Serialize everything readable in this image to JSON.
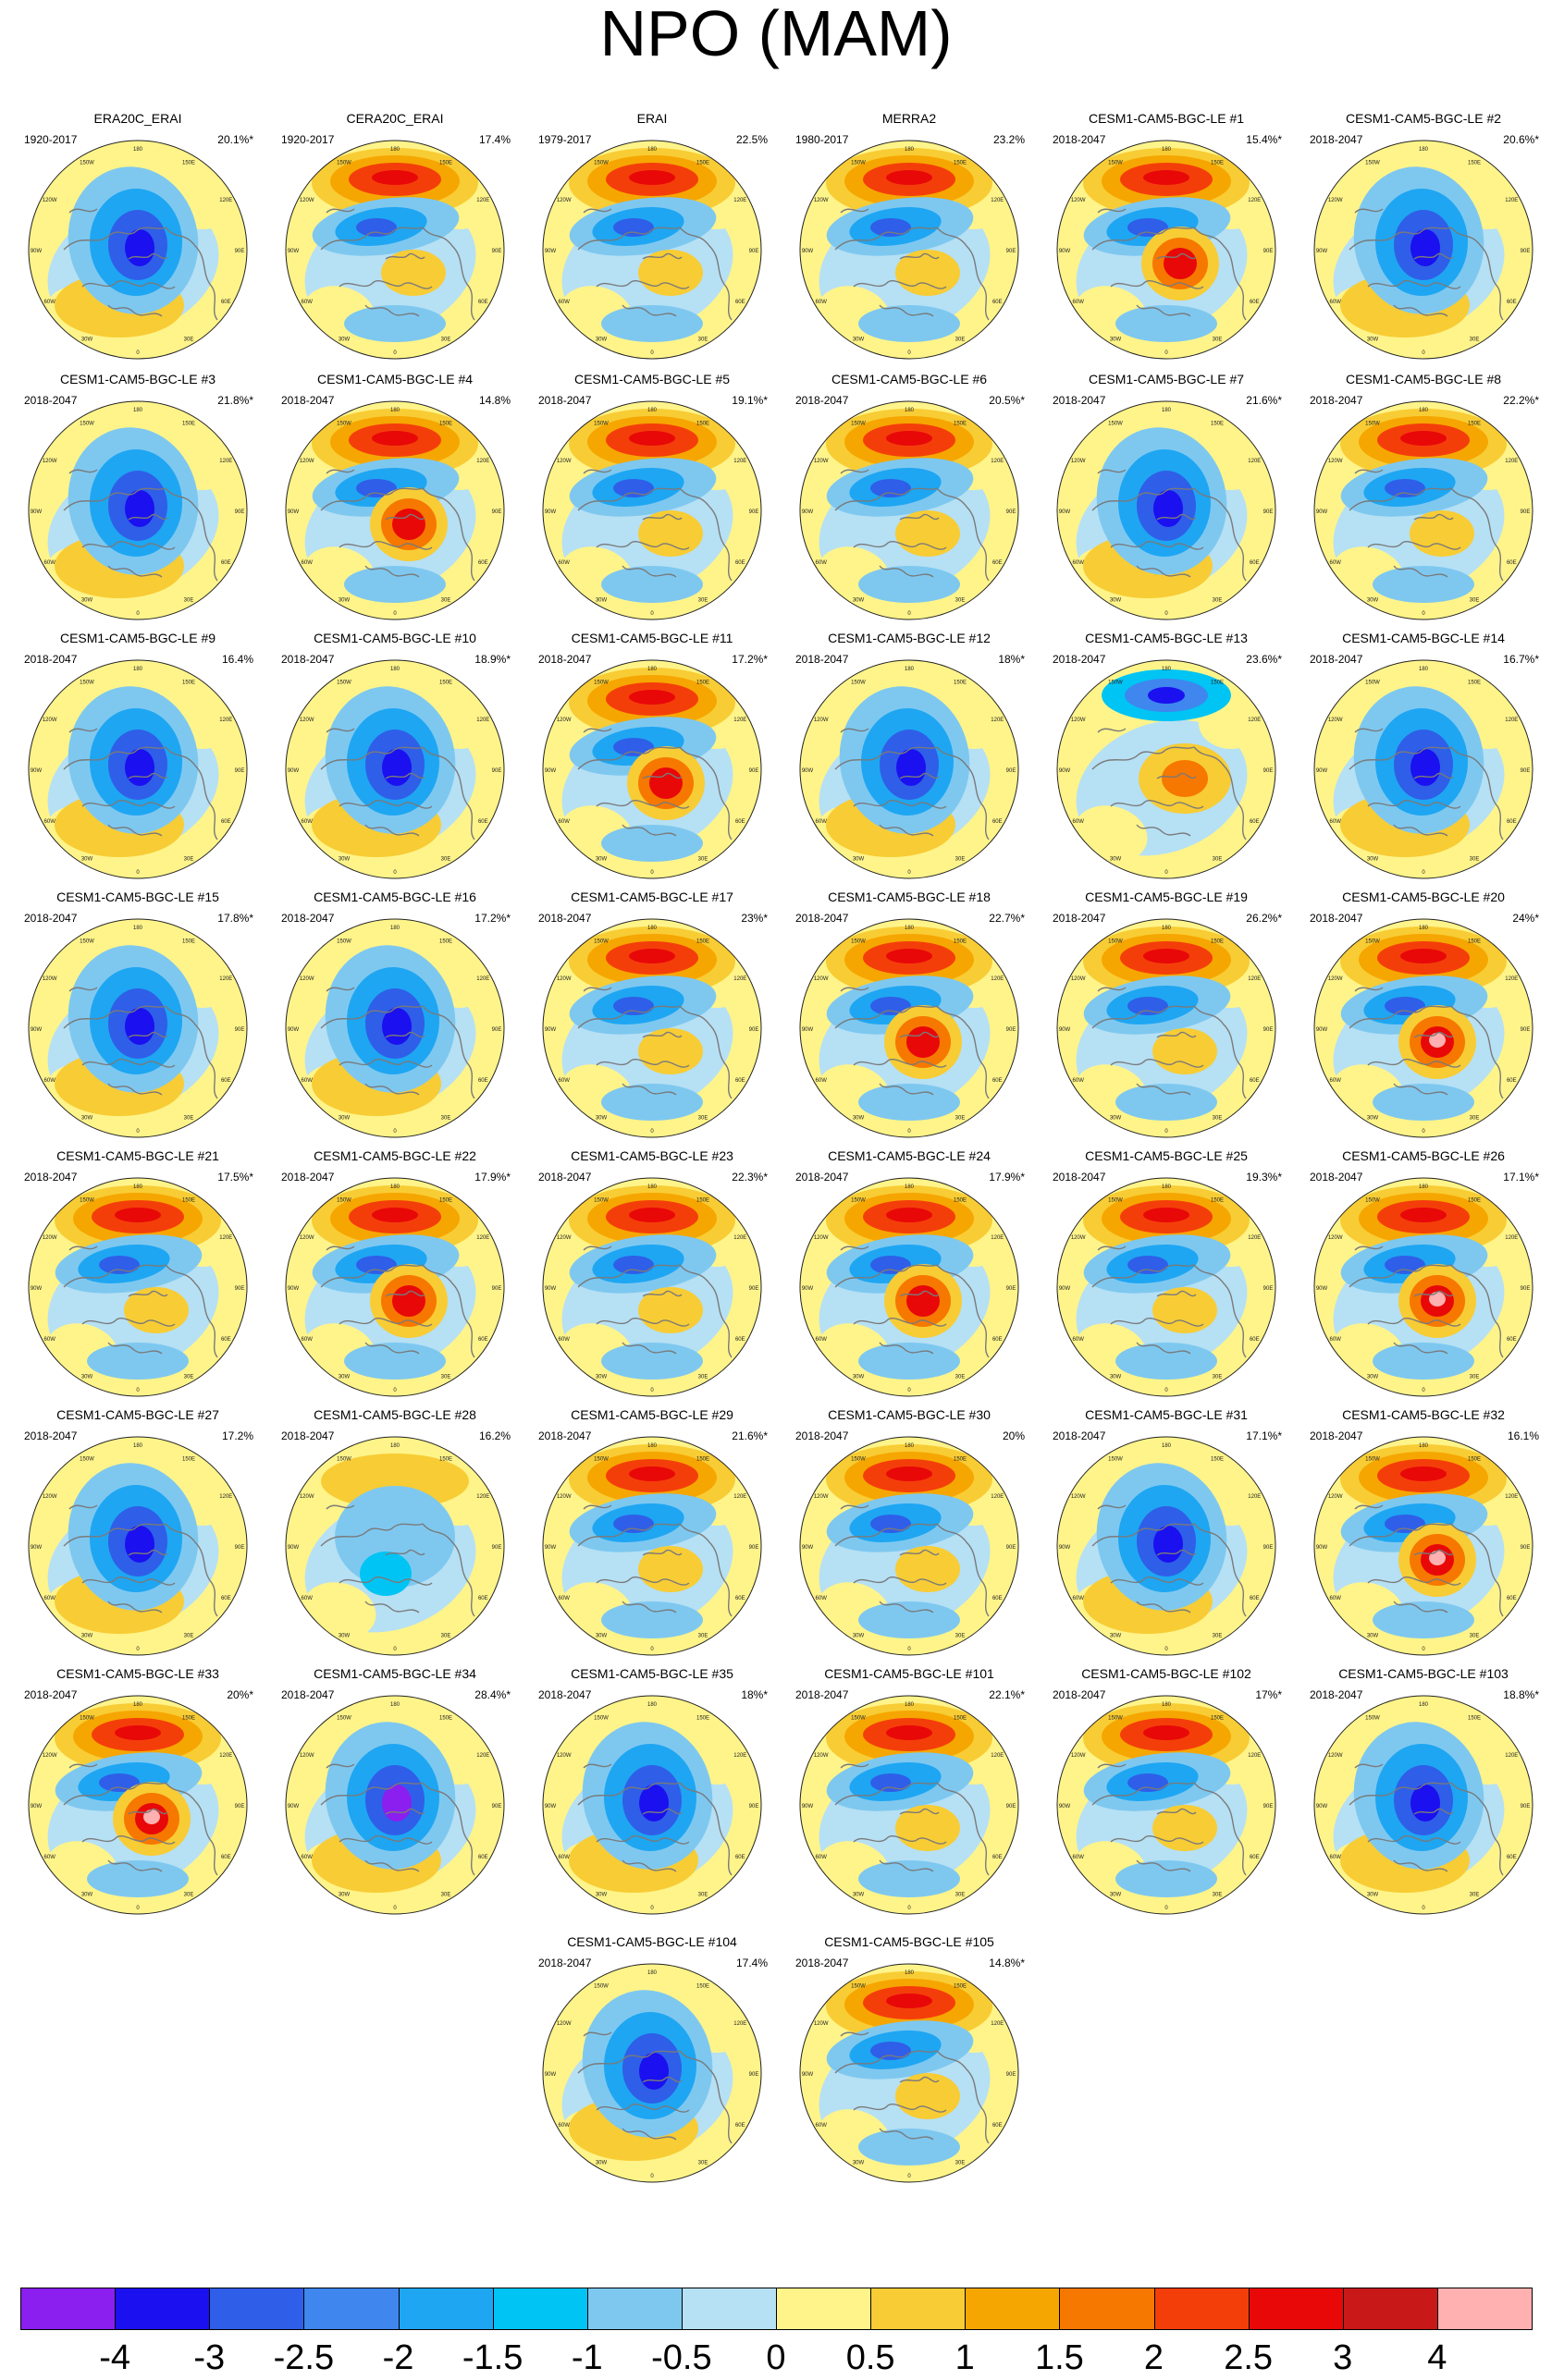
{
  "title": "NPO (MAM)",
  "chart_data": {
    "type": "small-multiples polar stereographic maps",
    "title": "NPO (MAM)",
    "map_longitude_labels": [
      "180",
      "150E",
      "120E",
      "90E",
      "60E",
      "30E",
      "0",
      "30W",
      "60W",
      "90W",
      "120W",
      "150W"
    ],
    "panels": [
      {
        "name": "ERA20C_ERAI",
        "period": "1920-2017",
        "variance": "20.1%*",
        "pattern": "low"
      },
      {
        "name": "CERA20C_ERAI",
        "period": "1920-2017",
        "variance": "17.4%",
        "pattern": "dipole"
      },
      {
        "name": "ERAI",
        "period": "1979-2017",
        "variance": "22.5%",
        "pattern": "dipole"
      },
      {
        "name": "MERRA2",
        "period": "1980-2017",
        "variance": "23.2%",
        "pattern": "dipole"
      },
      {
        "name": "CESM1-CAM5-BGC-LE #1",
        "period": "2018-2047",
        "variance": "15.4%*",
        "pattern": "dipole-high"
      },
      {
        "name": "CESM1-CAM5-BGC-LE #2",
        "period": "2018-2047",
        "variance": "20.6%*",
        "pattern": "low"
      },
      {
        "name": "CESM1-CAM5-BGC-LE #3",
        "period": "2018-2047",
        "variance": "21.8%*",
        "pattern": "low"
      },
      {
        "name": "CESM1-CAM5-BGC-LE #4",
        "period": "2018-2047",
        "variance": "14.8%",
        "pattern": "dipole-high"
      },
      {
        "name": "CESM1-CAM5-BGC-LE #5",
        "period": "2018-2047",
        "variance": "19.1%*",
        "pattern": "dipole"
      },
      {
        "name": "CESM1-CAM5-BGC-LE #6",
        "period": "2018-2047",
        "variance": "20.5%*",
        "pattern": "dipole"
      },
      {
        "name": "CESM1-CAM5-BGC-LE #7",
        "period": "2018-2047",
        "variance": "21.6%*",
        "pattern": "low"
      },
      {
        "name": "CESM1-CAM5-BGC-LE #8",
        "period": "2018-2047",
        "variance": "22.2%*",
        "pattern": "dipole"
      },
      {
        "name": "CESM1-CAM5-BGC-LE #9",
        "period": "2018-2047",
        "variance": "16.4%",
        "pattern": "low"
      },
      {
        "name": "CESM1-CAM5-BGC-LE #10",
        "period": "2018-2047",
        "variance": "18.9%*",
        "pattern": "low"
      },
      {
        "name": "CESM1-CAM5-BGC-LE #11",
        "period": "2018-2047",
        "variance": "17.2%*",
        "pattern": "dipole-high"
      },
      {
        "name": "CESM1-CAM5-BGC-LE #12",
        "period": "2018-2047",
        "variance": "18%*",
        "pattern": "low"
      },
      {
        "name": "CESM1-CAM5-BGC-LE #13",
        "period": "2018-2047",
        "variance": "23.6%*",
        "pattern": "inverse"
      },
      {
        "name": "CESM1-CAM5-BGC-LE #14",
        "period": "2018-2047",
        "variance": "16.7%*",
        "pattern": "low"
      },
      {
        "name": "CESM1-CAM5-BGC-LE #15",
        "period": "2018-2047",
        "variance": "17.8%*",
        "pattern": "low"
      },
      {
        "name": "CESM1-CAM5-BGC-LE #16",
        "period": "2018-2047",
        "variance": "17.2%*",
        "pattern": "low"
      },
      {
        "name": "CESM1-CAM5-BGC-LE #17",
        "period": "2018-2047",
        "variance": "23%*",
        "pattern": "dipole"
      },
      {
        "name": "CESM1-CAM5-BGC-LE #18",
        "period": "2018-2047",
        "variance": "22.7%*",
        "pattern": "dipole-high"
      },
      {
        "name": "CESM1-CAM5-BGC-LE #19",
        "period": "2018-2047",
        "variance": "26.2%*",
        "pattern": "dipole"
      },
      {
        "name": "CESM1-CAM5-BGC-LE #20",
        "period": "2018-2047",
        "variance": "24%*",
        "pattern": "dipole-strong"
      },
      {
        "name": "CESM1-CAM5-BGC-LE #21",
        "period": "2018-2047",
        "variance": "17.5%*",
        "pattern": "dipole"
      },
      {
        "name": "CESM1-CAM5-BGC-LE #22",
        "period": "2018-2047",
        "variance": "17.9%*",
        "pattern": "dipole-high"
      },
      {
        "name": "CESM1-CAM5-BGC-LE #23",
        "period": "2018-2047",
        "variance": "22.3%*",
        "pattern": "dipole"
      },
      {
        "name": "CESM1-CAM5-BGC-LE #24",
        "period": "2018-2047",
        "variance": "17.9%*",
        "pattern": "dipole-high"
      },
      {
        "name": "CESM1-CAM5-BGC-LE #25",
        "period": "2018-2047",
        "variance": "19.3%*",
        "pattern": "dipole"
      },
      {
        "name": "CESM1-CAM5-BGC-LE #26",
        "period": "2018-2047",
        "variance": "17.1%*",
        "pattern": "dipole-strong"
      },
      {
        "name": "CESM1-CAM5-BGC-LE #27",
        "period": "2018-2047",
        "variance": "17.2%",
        "pattern": "low"
      },
      {
        "name": "CESM1-CAM5-BGC-LE #28",
        "period": "2018-2047",
        "variance": "16.2%",
        "pattern": "weak"
      },
      {
        "name": "CESM1-CAM5-BGC-LE #29",
        "period": "2018-2047",
        "variance": "21.6%*",
        "pattern": "dipole"
      },
      {
        "name": "CESM1-CAM5-BGC-LE #30",
        "period": "2018-2047",
        "variance": "20%",
        "pattern": "dipole"
      },
      {
        "name": "CESM1-CAM5-BGC-LE #31",
        "period": "2018-2047",
        "variance": "17.1%*",
        "pattern": "low"
      },
      {
        "name": "CESM1-CAM5-BGC-LE #32",
        "period": "2018-2047",
        "variance": "16.1%",
        "pattern": "dipole-strong"
      },
      {
        "name": "CESM1-CAM5-BGC-LE #33",
        "period": "2018-2047",
        "variance": "20%*",
        "pattern": "dipole-strong"
      },
      {
        "name": "CESM1-CAM5-BGC-LE #34",
        "period": "2018-2047",
        "variance": "28.4%*",
        "pattern": "low-strong"
      },
      {
        "name": "CESM1-CAM5-BGC-LE #35",
        "period": "2018-2047",
        "variance": "18%*",
        "pattern": "low"
      },
      {
        "name": "CESM1-CAM5-BGC-LE #101",
        "period": "2018-2047",
        "variance": "22.1%*",
        "pattern": "dipole"
      },
      {
        "name": "CESM1-CAM5-BGC-LE #102",
        "period": "2018-2047",
        "variance": "17%*",
        "pattern": "dipole"
      },
      {
        "name": "CESM1-CAM5-BGC-LE #103",
        "period": "2018-2047",
        "variance": "18.8%*",
        "pattern": "low"
      },
      {
        "name": "CESM1-CAM5-BGC-LE #104",
        "period": "2018-2047",
        "variance": "17.4%",
        "pattern": "low"
      },
      {
        "name": "CESM1-CAM5-BGC-LE #105",
        "period": "2018-2047",
        "variance": "14.8%*",
        "pattern": "dipole"
      }
    ],
    "colorbar": {
      "labels": [
        "-4",
        "-3",
        "-2.5",
        "-2",
        "-1.5",
        "-1",
        "-0.5",
        "0",
        "0.5",
        "1",
        "1.5",
        "2",
        "2.5",
        "3",
        "4"
      ],
      "colors": [
        "#8a1ff0",
        "#1a10f0",
        "#2f5ee8",
        "#3f86ee",
        "#1ea6f2",
        "#00c4f4",
        "#7ec8f0",
        "#b6e0f4",
        "#fff48a",
        "#f8cc34",
        "#f6a600",
        "#f67800",
        "#f43e0a",
        "#e80808",
        "#c81818",
        "#ffb0b0"
      ]
    }
  }
}
